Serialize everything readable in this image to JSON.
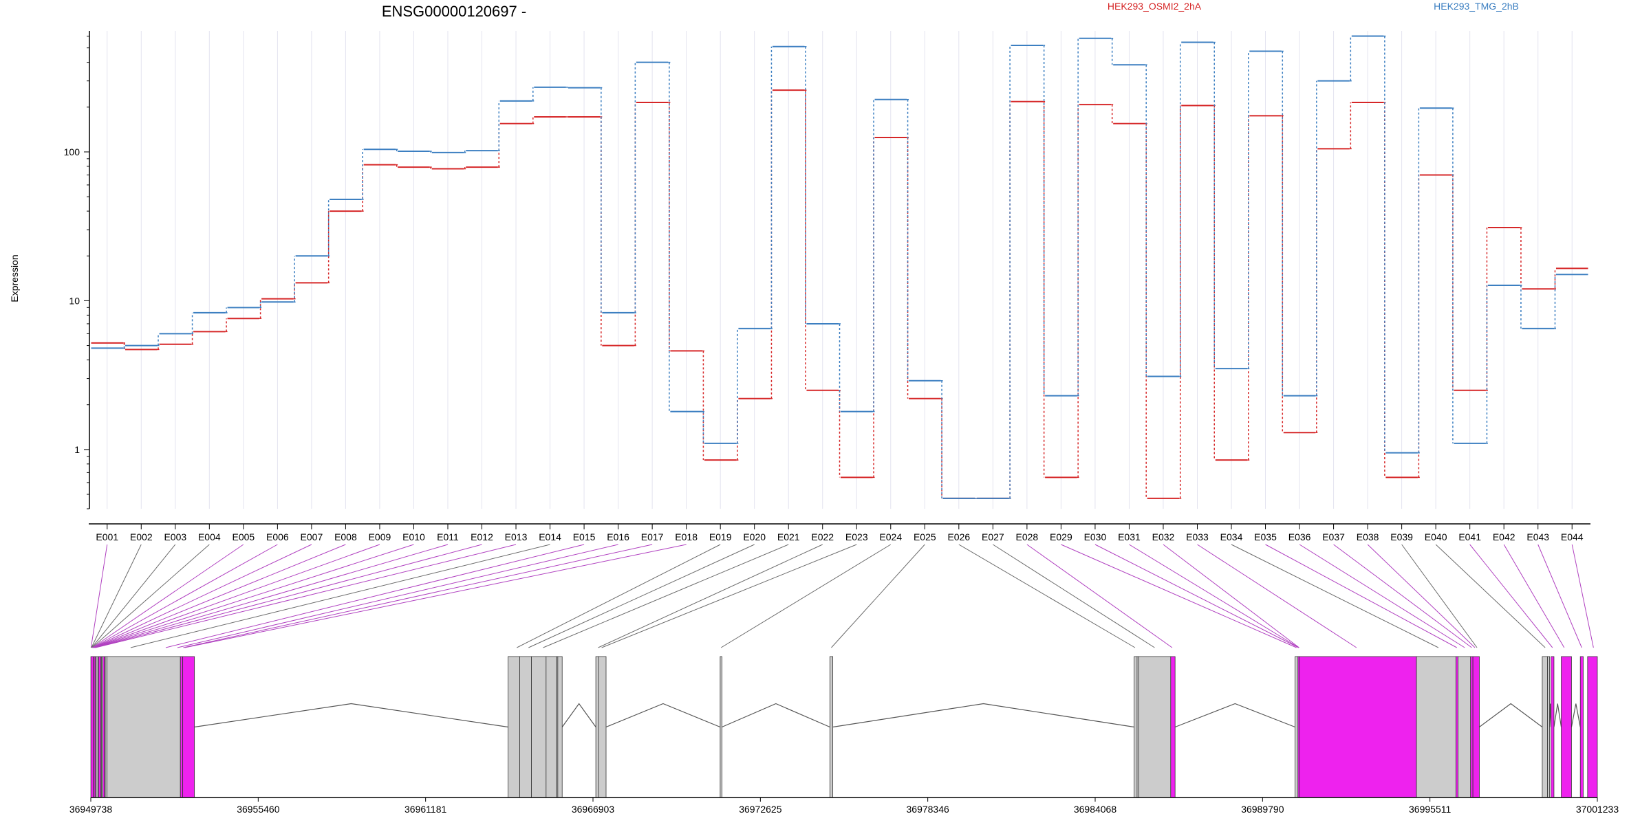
{
  "chart_data": {
    "type": "line",
    "title": "ENSG00000120697 -",
    "ylabel": "Expression",
    "xlabel": "",
    "yscale": "log",
    "ylim": [
      0.4,
      650
    ],
    "yticks": [
      {
        "value": 1,
        "label": "1"
      },
      {
        "value": 10,
        "label": "10"
      },
      {
        "value": 100,
        "label": "100"
      }
    ],
    "grid": "vertical-exon-lines",
    "categories": [
      "E001",
      "E002",
      "E003",
      "E004",
      "E005",
      "E006",
      "E007",
      "E008",
      "E009",
      "E010",
      "E011",
      "E012",
      "E013",
      "E014",
      "E015",
      "E016",
      "E017",
      "E018",
      "E019",
      "E020",
      "E021",
      "E022",
      "E023",
      "E024",
      "E025",
      "E026",
      "E027",
      "E028",
      "E029",
      "E030",
      "E031",
      "E032",
      "E033",
      "E034",
      "E035",
      "E036",
      "E037",
      "E038",
      "E039",
      "E040",
      "E041",
      "E042",
      "E043",
      "E044"
    ],
    "series": [
      {
        "name": "HEK293_OSMI2_2hA",
        "color": "#d62728",
        "values": [
          5.2,
          4.7,
          5.1,
          6.2,
          7.6,
          10.3,
          13.2,
          40,
          82,
          79,
          77,
          79,
          155,
          172,
          172,
          5.0,
          215,
          4.6,
          0.85,
          2.2,
          260,
          2.5,
          0.65,
          125,
          2.2,
          0.47,
          0.47,
          218,
          0.65,
          208,
          155,
          0.47,
          205,
          0.85,
          175,
          1.3,
          105,
          215,
          0.65,
          70,
          2.5,
          31,
          12,
          16.5
        ]
      },
      {
        "name": "HEK293_TMG_2hB",
        "color": "#3c7fc1",
        "values": [
          4.8,
          5.0,
          6.0,
          8.3,
          9.0,
          9.8,
          20,
          48,
          104,
          101,
          99,
          102,
          220,
          272,
          270,
          8.3,
          400,
          1.8,
          1.1,
          6.5,
          510,
          7.0,
          1.8,
          225,
          2.9,
          0.47,
          0.47,
          520,
          2.3,
          580,
          385,
          3.1,
          545,
          3.5,
          475,
          2.3,
          300,
          600,
          0.95,
          197,
          1.1,
          12.7,
          6.5,
          15
        ]
      }
    ],
    "legend": "top-right",
    "genomic_axis": {
      "labels": [
        "36949738",
        "36955460",
        "36961181",
        "36966903",
        "36972625",
        "36978346",
        "36984068",
        "36989790",
        "36995511",
        "37001233"
      ],
      "start": 36949738,
      "end": 37001233
    },
    "gene_model": {
      "exon_color_highlight": "#ee22ee",
      "exon_color_default": "#cccccc",
      "exons": [
        {
          "start": 36949740,
          "end": 36949830,
          "hl": true
        },
        {
          "start": 36949850,
          "end": 36949900,
          "hl": true
        },
        {
          "start": 36949920,
          "end": 36949980,
          "hl": false
        },
        {
          "start": 36950000,
          "end": 36950080,
          "hl": true
        },
        {
          "start": 36950100,
          "end": 36950150,
          "hl": false
        },
        {
          "start": 36950150,
          "end": 36950210,
          "hl": true
        },
        {
          "start": 36950230,
          "end": 36950290,
          "hl": false
        },
        {
          "start": 36950290,
          "end": 36952800,
          "hl": false
        },
        {
          "start": 36952800,
          "end": 36952880,
          "hl": true
        },
        {
          "start": 36952880,
          "end": 36953280,
          "hl": true
        },
        {
          "start": 36964000,
          "end": 36964400,
          "hl": false
        },
        {
          "start": 36964400,
          "end": 36964800,
          "hl": false
        },
        {
          "start": 36964800,
          "end": 36965300,
          "hl": false
        },
        {
          "start": 36965300,
          "end": 36965650,
          "hl": false
        },
        {
          "start": 36965650,
          "end": 36965700,
          "hl": false
        },
        {
          "start": 36965700,
          "end": 36965850,
          "hl": false
        },
        {
          "start": 36967000,
          "end": 36967100,
          "hl": false
        },
        {
          "start": 36967100,
          "end": 36967350,
          "hl": false
        },
        {
          "start": 36971250,
          "end": 36971310,
          "hl": false
        },
        {
          "start": 36975000,
          "end": 36975100,
          "hl": false
        },
        {
          "start": 36985400,
          "end": 36985500,
          "hl": false
        },
        {
          "start": 36985500,
          "end": 36985560,
          "hl": false
        },
        {
          "start": 36985560,
          "end": 36986650,
          "hl": false
        },
        {
          "start": 36986650,
          "end": 36986800,
          "hl": true
        },
        {
          "start": 36990900,
          "end": 36991000,
          "hl": false
        },
        {
          "start": 36991000,
          "end": 36991050,
          "hl": true
        },
        {
          "start": 36991050,
          "end": 36995050,
          "hl": true
        },
        {
          "start": 36995050,
          "end": 36996400,
          "hl": false
        },
        {
          "start": 36996400,
          "end": 36996470,
          "hl": true
        },
        {
          "start": 36996470,
          "end": 36996900,
          "hl": false
        },
        {
          "start": 36996900,
          "end": 36996980,
          "hl": true
        },
        {
          "start": 36996980,
          "end": 36997200,
          "hl": true
        },
        {
          "start": 36999350,
          "end": 36999530,
          "hl": false
        },
        {
          "start": 36999530,
          "end": 36999600,
          "hl": false
        },
        {
          "start": 36999650,
          "end": 36999750,
          "hl": true
        },
        {
          "start": 37000000,
          "end": 37000350,
          "hl": true
        },
        {
          "start": 37000650,
          "end": 37000750,
          "hl": true
        },
        {
          "start": 37000900,
          "end": 37001233,
          "hl": true
        }
      ],
      "introns": [
        [
          36953280,
          36964000
        ],
        [
          36965850,
          36967000
        ],
        [
          36967350,
          36971250
        ],
        [
          36971310,
          36975000
        ],
        [
          36975100,
          36985400
        ],
        [
          36986800,
          36990900
        ],
        [
          36997200,
          36999350
        ],
        [
          36999600,
          36999650
        ],
        [
          36999750,
          37000000
        ],
        [
          37000350,
          37000650
        ]
      ],
      "exon_to_bin": [
        {
          "g": 36949745,
          "hl": true
        },
        {
          "g": 36949760,
          "hl": false
        },
        {
          "g": 36949770,
          "hl": false
        },
        {
          "g": 36949780,
          "hl": false
        },
        {
          "g": 36949790,
          "hl": true
        },
        {
          "g": 36949800,
          "hl": true
        },
        {
          "g": 36949810,
          "hl": true
        },
        {
          "g": 36949820,
          "hl": true
        },
        {
          "g": 36949830,
          "hl": true
        },
        {
          "g": 36949840,
          "hl": true
        },
        {
          "g": 36949860,
          "hl": true
        },
        {
          "g": 36949880,
          "hl": true
        },
        {
          "g": 36949900,
          "hl": true
        },
        {
          "g": 36951100,
          "hl": false
        },
        {
          "g": 36952300,
          "hl": true
        },
        {
          "g": 36952700,
          "hl": true
        },
        {
          "g": 36952900,
          "hl": true
        },
        {
          "g": 36952950,
          "hl": true
        },
        {
          "g": 36964300,
          "hl": false
        },
        {
          "g": 36964700,
          "hl": false
        },
        {
          "g": 36965200,
          "hl": false
        },
        {
          "g": 36967080,
          "hl": false
        },
        {
          "g": 36967200,
          "hl": false
        },
        {
          "g": 36971280,
          "hl": false
        },
        {
          "g": 36975050,
          "hl": false
        },
        {
          "g": 36985430,
          "hl": false
        },
        {
          "g": 36986100,
          "hl": false
        },
        {
          "g": 36986700,
          "hl": true
        },
        {
          "g": 36990950,
          "hl": true
        },
        {
          "g": 36991020,
          "hl": true
        },
        {
          "g": 36991030,
          "hl": true
        },
        {
          "g": 36991040,
          "hl": true
        },
        {
          "g": 36993000,
          "hl": true
        },
        {
          "g": 36995800,
          "hl": false
        },
        {
          "g": 36996430,
          "hl": true
        },
        {
          "g": 36996700,
          "hl": true
        },
        {
          "g": 36996940,
          "hl": true
        },
        {
          "g": 36997050,
          "hl": true
        },
        {
          "g": 36997120,
          "hl": false
        },
        {
          "g": 36999450,
          "hl": false
        },
        {
          "g": 36999700,
          "hl": true
        },
        {
          "g": 37000100,
          "hl": true
        },
        {
          "g": 37000700,
          "hl": true
        },
        {
          "g": 37001100,
          "hl": true
        }
      ]
    }
  }
}
